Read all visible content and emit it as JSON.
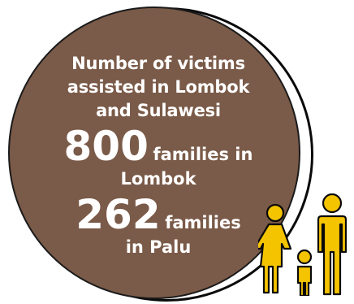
{
  "heading": "Number of victims assisted in Lombok and Sulawesi",
  "stats": [
    {
      "number": "800",
      "label": "families in",
      "label_cont": "Lombok"
    },
    {
      "number": "262",
      "label": "families",
      "label_cont": "in Palu"
    }
  ],
  "icon": "family-icon",
  "colors": {
    "circle_fill": "#7a5a48",
    "icon_fill": "#f5c400",
    "outline": "#0a0a0a",
    "text": "#ffffff"
  }
}
